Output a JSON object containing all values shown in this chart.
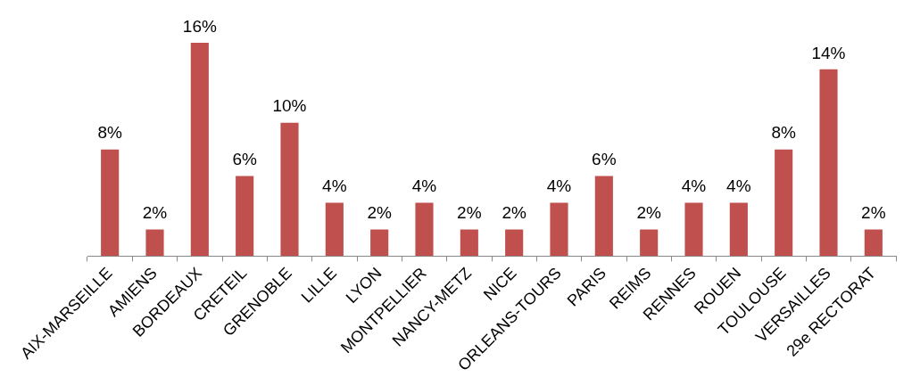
{
  "chart_data": {
    "type": "bar",
    "categories": [
      "AIX-MARSEILLE",
      "AMIENS",
      "BORDEAUX",
      "CRETEIL",
      "GRENOBLE",
      "LILLE",
      "LYON",
      "MONTPELLIER",
      "NANCY-METZ",
      "NICE",
      "ORLEANS-TOURS",
      "PARIS",
      "REIMS",
      "RENNES",
      "ROUEN",
      "TOULOUSE",
      "VERSAILLES",
      "29e RECTORAT"
    ],
    "values": [
      8,
      2,
      16,
      6,
      10,
      4,
      2,
      4,
      2,
      2,
      4,
      6,
      2,
      4,
      4,
      8,
      14,
      2
    ],
    "value_labels": [
      "8%",
      "2%",
      "16%",
      "6%",
      "10%",
      "4%",
      "2%",
      "4%",
      "2%",
      "2%",
      "4%",
      "6%",
      "2%",
      "4%",
      "4%",
      "8%",
      "14%",
      "2%"
    ],
    "color": "#c0504d"
  }
}
